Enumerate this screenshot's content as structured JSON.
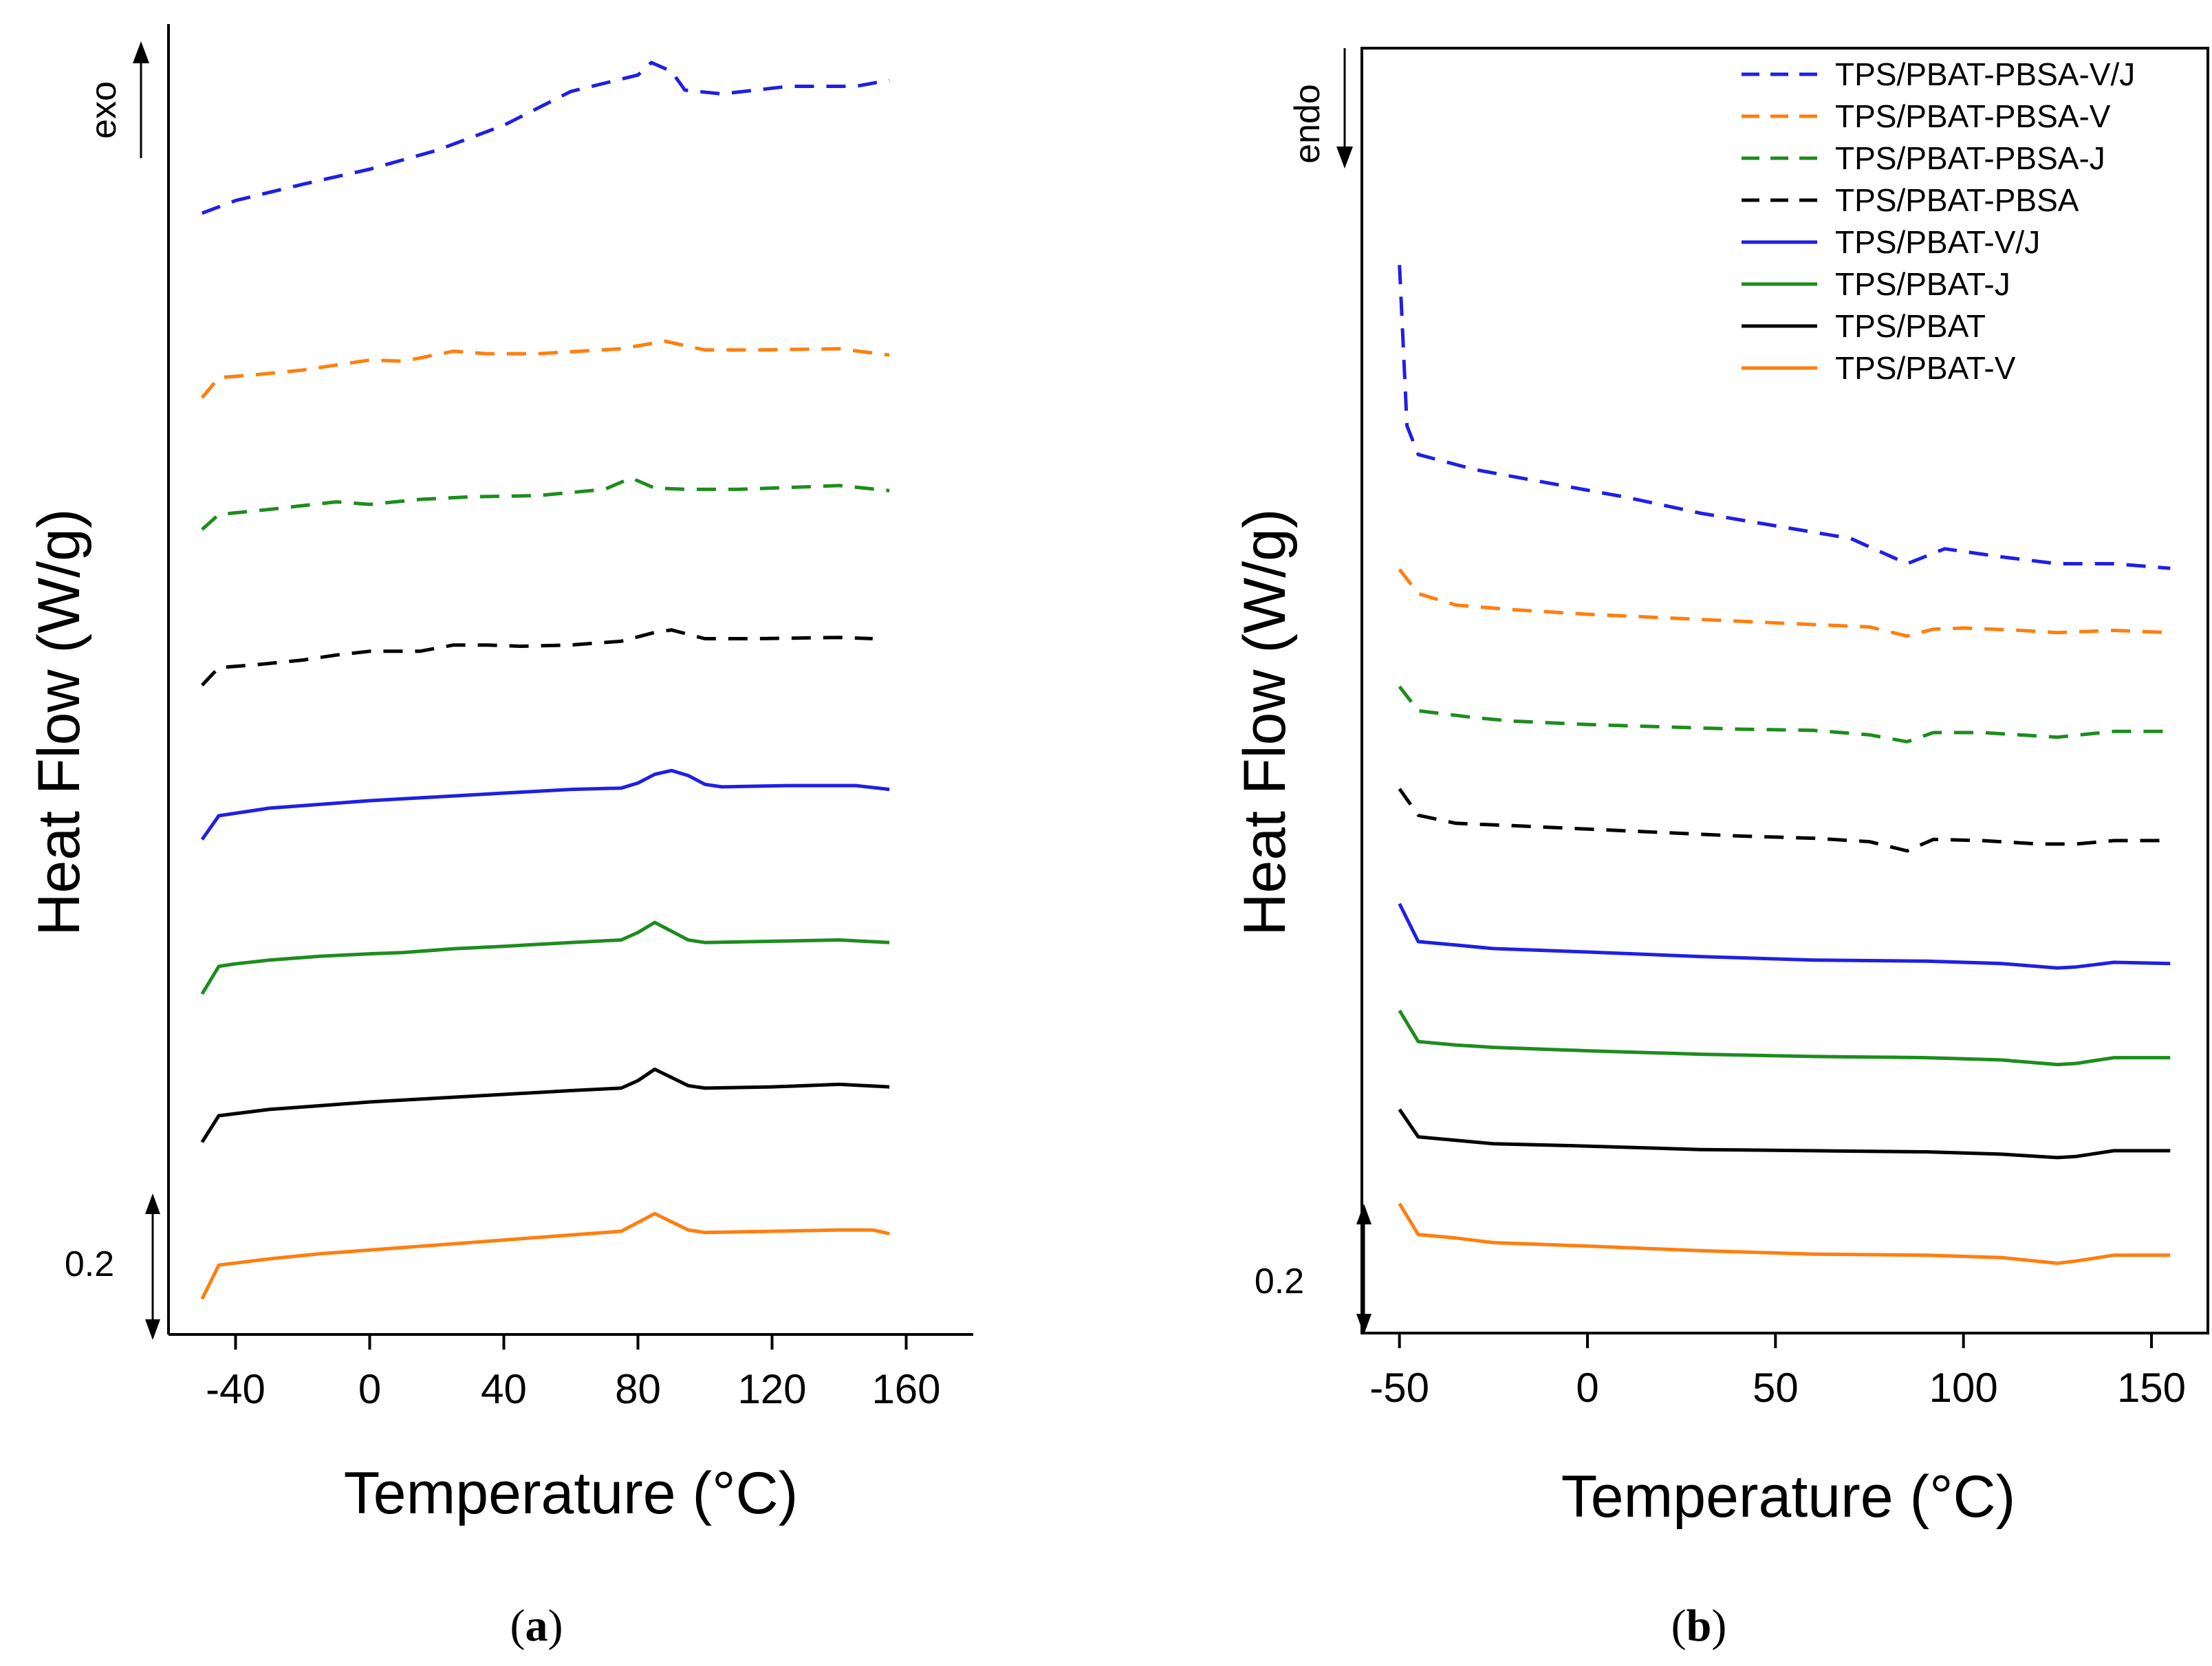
{
  "chart_data": [
    {
      "panel": "(a)",
      "type": "line",
      "caption_open": "(",
      "caption_letter": "a",
      "caption_close": ")",
      "xlabel": "Temperature (°C)",
      "ylabel": "Heat Flow (W/g)",
      "direction_label": "exo",
      "scale_label": "0.2",
      "xlim": [
        -60,
        180
      ],
      "x_ticks": [
        -40,
        0,
        40,
        80,
        120,
        160
      ],
      "y_range": [
        0,
        100
      ],
      "series": [
        {
          "name": "TPS/PBAT-PBSA-V/J",
          "color": "#1f1fe6",
          "dashed": true,
          "points": [
            [
              -50,
              88.5
            ],
            [
              -40,
              89.5
            ],
            [
              -20,
              90.8
            ],
            [
              0,
              92.0
            ],
            [
              20,
              93.5
            ],
            [
              40,
              95.5
            ],
            [
              60,
              98.2
            ],
            [
              80,
              99.5
            ],
            [
              84,
              100.5
            ],
            [
              90,
              99.8
            ],
            [
              94,
              98.3
            ],
            [
              105,
              98.0
            ],
            [
              125,
              98.6
            ],
            [
              145,
              98.6
            ],
            [
              155,
              99.1
            ]
          ]
        },
        {
          "name": "TPS/PBAT-PBSA-V",
          "color": "#ff7f0e",
          "dashed": true,
          "points": [
            [
              -50,
              73.8
            ],
            [
              -45,
              75.4
            ],
            [
              -35,
              75.6
            ],
            [
              -20,
              76.0
            ],
            [
              -10,
              76.4
            ],
            [
              0,
              76.8
            ],
            [
              10,
              76.7
            ],
            [
              25,
              77.5
            ],
            [
              35,
              77.3
            ],
            [
              50,
              77.3
            ],
            [
              75,
              77.7
            ],
            [
              88,
              78.3
            ],
            [
              100,
              77.6
            ],
            [
              115,
              77.6
            ],
            [
              140,
              77.7
            ],
            [
              155,
              77.2
            ]
          ]
        },
        {
          "name": "TPS/PBAT-PBSA-J",
          "color": "#1e8c1e",
          "dashed": true,
          "points": [
            [
              -50,
              63.3
            ],
            [
              -45,
              64.5
            ],
            [
              -30,
              64.9
            ],
            [
              -10,
              65.5
            ],
            [
              0,
              65.3
            ],
            [
              15,
              65.7
            ],
            [
              30,
              65.9
            ],
            [
              50,
              66.0
            ],
            [
              70,
              66.5
            ],
            [
              78,
              67.4
            ],
            [
              85,
              66.6
            ],
            [
              95,
              66.5
            ],
            [
              110,
              66.5
            ],
            [
              140,
              66.8
            ],
            [
              155,
              66.4
            ]
          ]
        },
        {
          "name": "TPS/PBAT-PBSA",
          "color": "#000000",
          "dashed": true,
          "points": [
            [
              -50,
              50.9
            ],
            [
              -45,
              52.3
            ],
            [
              -35,
              52.5
            ],
            [
              -20,
              52.9
            ],
            [
              -10,
              53.3
            ],
            [
              0,
              53.6
            ],
            [
              15,
              53.6
            ],
            [
              25,
              54.1
            ],
            [
              35,
              54.1
            ],
            [
              45,
              54.0
            ],
            [
              60,
              54.1
            ],
            [
              75,
              54.4
            ],
            [
              85,
              55.1
            ],
            [
              90,
              55.3
            ],
            [
              100,
              54.6
            ],
            [
              115,
              54.6
            ],
            [
              140,
              54.7
            ],
            [
              150,
              54.6
            ]
          ]
        },
        {
          "name": "TPS/PBAT-V/J",
          "color": "#1f1fe6",
          "dashed": false,
          "points": [
            [
              -50,
              38.6
            ],
            [
              -45,
              40.5
            ],
            [
              -30,
              41.1
            ],
            [
              -10,
              41.5
            ],
            [
              0,
              41.7
            ],
            [
              20,
              42.0
            ],
            [
              40,
              42.3
            ],
            [
              60,
              42.6
            ],
            [
              75,
              42.7
            ],
            [
              80,
              43.1
            ],
            [
              85,
              43.8
            ],
            [
              90,
              44.1
            ],
            [
              95,
              43.7
            ],
            [
              100,
              43.0
            ],
            [
              105,
              42.8
            ],
            [
              125,
              42.9
            ],
            [
              145,
              42.9
            ],
            [
              155,
              42.6
            ]
          ]
        },
        {
          "name": "TPS/PBAT-J",
          "color": "#1e8c1e",
          "dashed": false,
          "points": [
            [
              -50,
              26.3
            ],
            [
              -45,
              28.5
            ],
            [
              -40,
              28.7
            ],
            [
              -30,
              29.0
            ],
            [
              -15,
              29.3
            ],
            [
              0,
              29.5
            ],
            [
              10,
              29.6
            ],
            [
              25,
              29.9
            ],
            [
              40,
              30.1
            ],
            [
              60,
              30.4
            ],
            [
              75,
              30.6
            ],
            [
              80,
              31.2
            ],
            [
              85,
              32.0
            ],
            [
              95,
              30.6
            ],
            [
              100,
              30.4
            ],
            [
              120,
              30.5
            ],
            [
              140,
              30.6
            ],
            [
              155,
              30.4
            ]
          ]
        },
        {
          "name": "TPS/PBAT",
          "color": "#000000",
          "dashed": false,
          "points": [
            [
              -50,
              14.5
            ],
            [
              -45,
              16.6
            ],
            [
              -30,
              17.1
            ],
            [
              -15,
              17.4
            ],
            [
              0,
              17.7
            ],
            [
              20,
              18.0
            ],
            [
              40,
              18.3
            ],
            [
              60,
              18.6
            ],
            [
              75,
              18.8
            ],
            [
              80,
              19.4
            ],
            [
              85,
              20.3
            ],
            [
              95,
              19.0
            ],
            [
              100,
              18.8
            ],
            [
              120,
              18.9
            ],
            [
              140,
              19.1
            ],
            [
              155,
              18.9
            ]
          ]
        },
        {
          "name": "TPS/PBAT-V",
          "color": "#ff7f0e",
          "dashed": false,
          "points": [
            [
              -50,
              2.0
            ],
            [
              -45,
              4.7
            ],
            [
              -30,
              5.2
            ],
            [
              -15,
              5.6
            ],
            [
              0,
              5.9
            ],
            [
              20,
              6.3
            ],
            [
              40,
              6.7
            ],
            [
              60,
              7.1
            ],
            [
              75,
              7.4
            ],
            [
              80,
              8.1
            ],
            [
              85,
              8.8
            ],
            [
              95,
              7.5
            ],
            [
              100,
              7.3
            ],
            [
              120,
              7.4
            ],
            [
              140,
              7.5
            ],
            [
              150,
              7.5
            ],
            [
              155,
              7.2
            ]
          ]
        }
      ]
    },
    {
      "panel": "(b)",
      "type": "line",
      "caption_open": "(",
      "caption_letter": "b",
      "caption_close": ")",
      "xlabel": "Temperature (°C)",
      "ylabel": "Heat Flow (W/g)",
      "direction_label": "endo",
      "scale_label": "0.2",
      "xlim": [
        -60,
        165
      ],
      "x_ticks": [
        -50,
        0,
        50,
        100,
        150
      ],
      "y_range": [
        0,
        100
      ],
      "legend_position": "top-right",
      "series": [
        {
          "name": "TPS/PBAT-PBSA-V/J",
          "color": "#1f1fe6",
          "dashed": true,
          "points": [
            [
              -50,
              91.0
            ],
            [
              -48,
              77.0
            ],
            [
              -45,
              74.5
            ],
            [
              -30,
              73.2
            ],
            [
              -10,
              72.0
            ],
            [
              10,
              70.8
            ],
            [
              30,
              69.4
            ],
            [
              50,
              68.3
            ],
            [
              70,
              67.2
            ],
            [
              85,
              65.0
            ],
            [
              95,
              66.3
            ],
            [
              110,
              65.6
            ],
            [
              125,
              65.0
            ],
            [
              140,
              65.0
            ],
            [
              155,
              64.6
            ]
          ]
        },
        {
          "name": "TPS/PBAT-PBSA-V",
          "color": "#ff7f0e",
          "dashed": true,
          "points": [
            [
              -50,
              64.5
            ],
            [
              -45,
              62.4
            ],
            [
              -35,
              61.4
            ],
            [
              -20,
              61.0
            ],
            [
              0,
              60.6
            ],
            [
              20,
              60.3
            ],
            [
              40,
              60.0
            ],
            [
              60,
              59.7
            ],
            [
              75,
              59.5
            ],
            [
              85,
              58.7
            ],
            [
              92,
              59.3
            ],
            [
              100,
              59.4
            ],
            [
              115,
              59.2
            ],
            [
              125,
              59.0
            ],
            [
              140,
              59.2
            ],
            [
              155,
              59.0
            ]
          ]
        },
        {
          "name": "TPS/PBAT-PBSA-J",
          "color": "#1e8c1e",
          "dashed": true,
          "points": [
            [
              -50,
              54.3
            ],
            [
              -45,
              52.2
            ],
            [
              -30,
              51.6
            ],
            [
              -20,
              51.3
            ],
            [
              0,
              51.0
            ],
            [
              20,
              50.8
            ],
            [
              40,
              50.6
            ],
            [
              60,
              50.5
            ],
            [
              75,
              50.1
            ],
            [
              85,
              49.5
            ],
            [
              92,
              50.3
            ],
            [
              105,
              50.3
            ],
            [
              125,
              49.9
            ],
            [
              140,
              50.4
            ],
            [
              155,
              50.4
            ]
          ]
        },
        {
          "name": "TPS/PBAT-PBSA",
          "color": "#000000",
          "dashed": true,
          "points": [
            [
              -50,
              45.4
            ],
            [
              -45,
              43.1
            ],
            [
              -35,
              42.4
            ],
            [
              -20,
              42.2
            ],
            [
              0,
              41.9
            ],
            [
              20,
              41.6
            ],
            [
              40,
              41.3
            ],
            [
              60,
              41.1
            ],
            [
              75,
              40.8
            ],
            [
              85,
              40.0
            ],
            [
              92,
              41.0
            ],
            [
              105,
              40.9
            ],
            [
              120,
              40.6
            ],
            [
              130,
              40.6
            ],
            [
              140,
              40.9
            ],
            [
              155,
              40.9
            ]
          ]
        },
        {
          "name": "TPS/PBAT-V/J",
          "color": "#1f1fe6",
          "dashed": false,
          "points": [
            [
              -50,
              35.4
            ],
            [
              -45,
              32.1
            ],
            [
              -35,
              31.8
            ],
            [
              -25,
              31.5
            ],
            [
              0,
              31.2
            ],
            [
              30,
              30.8
            ],
            [
              60,
              30.5
            ],
            [
              90,
              30.4
            ],
            [
              110,
              30.2
            ],
            [
              125,
              29.8
            ],
            [
              130,
              29.9
            ],
            [
              140,
              30.3
            ],
            [
              155,
              30.2
            ]
          ]
        },
        {
          "name": "TPS/PBAT-J",
          "color": "#1e8c1e",
          "dashed": false,
          "points": [
            [
              -50,
              26.1
            ],
            [
              -45,
              23.4
            ],
            [
              -35,
              23.1
            ],
            [
              -25,
              22.9
            ],
            [
              0,
              22.6
            ],
            [
              30,
              22.3
            ],
            [
              60,
              22.1
            ],
            [
              90,
              22.0
            ],
            [
              110,
              21.8
            ],
            [
              125,
              21.4
            ],
            [
              130,
              21.5
            ],
            [
              140,
              22.0
            ],
            [
              155,
              22.0
            ]
          ]
        },
        {
          "name": "TPS/PBAT",
          "color": "#000000",
          "dashed": false,
          "points": [
            [
              -50,
              17.5
            ],
            [
              -45,
              15.1
            ],
            [
              -35,
              14.8
            ],
            [
              -25,
              14.5
            ],
            [
              0,
              14.3
            ],
            [
              30,
              14.0
            ],
            [
              60,
              13.9
            ],
            [
              90,
              13.8
            ],
            [
              110,
              13.6
            ],
            [
              125,
              13.3
            ],
            [
              130,
              13.4
            ],
            [
              140,
              13.9
            ],
            [
              155,
              13.9
            ]
          ]
        },
        {
          "name": "TPS/PBAT-V",
          "color": "#ff7f0e",
          "dashed": false,
          "points": [
            [
              -50,
              9.3
            ],
            [
              -45,
              6.6
            ],
            [
              -35,
              6.3
            ],
            [
              -25,
              5.9
            ],
            [
              0,
              5.6
            ],
            [
              30,
              5.2
            ],
            [
              60,
              4.9
            ],
            [
              90,
              4.8
            ],
            [
              110,
              4.6
            ],
            [
              125,
              4.1
            ],
            [
              130,
              4.3
            ],
            [
              140,
              4.8
            ],
            [
              155,
              4.8
            ]
          ]
        }
      ]
    }
  ]
}
